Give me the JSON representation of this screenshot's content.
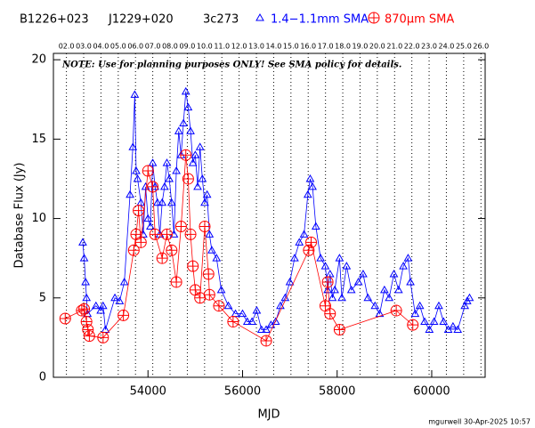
{
  "chart_data": {
    "type": "scatter",
    "labels": [
      "B1226+023",
      "J1229+020",
      "3c273"
    ],
    "annotation": "NOTE: Use for planning purposes ONLY!  See SMA policy for details.",
    "footer": "mgurwell 30-Apr-2025 10:57",
    "xlabel": "MJD",
    "ylabel": "Database Flux (Jy)",
    "xlim": [
      52000,
      61130
    ],
    "ylim": [
      0,
      20.4
    ],
    "xticks": [
      54000,
      56000,
      58000,
      60000
    ],
    "yticks": [
      0,
      5,
      10,
      15,
      20
    ],
    "x2ticks": [
      {
        "value": 52275,
        "label": "02.0"
      },
      {
        "value": 52640,
        "label": "03.0"
      },
      {
        "value": 53005,
        "label": "04.0"
      },
      {
        "value": 53371,
        "label": "05.0"
      },
      {
        "value": 53736,
        "label": "06.0"
      },
      {
        "value": 54101,
        "label": "07.0"
      },
      {
        "value": 54466,
        "label": "08.0"
      },
      {
        "value": 54832,
        "label": "09.0"
      },
      {
        "value": 55197,
        "label": "10.0"
      },
      {
        "value": 55562,
        "label": "11.0"
      },
      {
        "value": 55927,
        "label": "12.0"
      },
      {
        "value": 56293,
        "label": "13.0"
      },
      {
        "value": 56658,
        "label": "14.0"
      },
      {
        "value": 57023,
        "label": "15.0"
      },
      {
        "value": 57388,
        "label": "16.0"
      },
      {
        "value": 57754,
        "label": "17.0"
      },
      {
        "value": 58119,
        "label": "18.0"
      },
      {
        "value": 58484,
        "label": "19.0"
      },
      {
        "value": 58849,
        "label": "20.0"
      },
      {
        "value": 59215,
        "label": "21.0"
      },
      {
        "value": 59580,
        "label": "22.0"
      },
      {
        "value": 59945,
        "label": "23.0"
      },
      {
        "value": 60310,
        "label": "24.0"
      },
      {
        "value": 60676,
        "label": "25.0"
      },
      {
        "value": 61041,
        "label": "26.0"
      }
    ],
    "series": [
      {
        "name": "1.4−1.1mm SMA",
        "color": "#0000ff",
        "marker": "triangle",
        "x": [
          52620,
          52650,
          52680,
          52700,
          52720,
          52900,
          53000,
          53050,
          53100,
          53300,
          53400,
          53500,
          53620,
          53680,
          53720,
          53750,
          53780,
          53850,
          53900,
          53950,
          54000,
          54050,
          54100,
          54150,
          54200,
          54250,
          54300,
          54350,
          54400,
          54450,
          54500,
          54550,
          54600,
          54650,
          54700,
          54750,
          54800,
          54850,
          54900,
          54950,
          55000,
          55050,
          55100,
          55150,
          55200,
          55250,
          55300,
          55350,
          55450,
          55550,
          55700,
          55850,
          56000,
          56100,
          56200,
          56300,
          56400,
          56500,
          56600,
          56700,
          56800,
          56900,
          57000,
          57100,
          57200,
          57300,
          57380,
          57430,
          57480,
          57550,
          57650,
          57750,
          57800,
          57850,
          57900,
          57950,
          58050,
          58100,
          58200,
          58300,
          58450,
          58550,
          58650,
          58800,
          58900,
          59000,
          59100,
          59200,
          59300,
          59400,
          59500,
          59550,
          59650,
          59750,
          59850,
          59950,
          60050,
          60150,
          60250,
          60350,
          60450,
          60550,
          60700,
          60750,
          60800
        ],
        "values": [
          8.5,
          7.5,
          6.0,
          5.0,
          4.0,
          4.5,
          4.2,
          4.5,
          3.0,
          5.0,
          4.8,
          6.0,
          11.5,
          14.5,
          17.8,
          13.0,
          12.5,
          11.0,
          9.0,
          12.0,
          10.0,
          9.5,
          13.5,
          12.0,
          11.0,
          9.0,
          11.0,
          12.0,
          13.5,
          12.5,
          11.0,
          9.0,
          13.0,
          15.5,
          14.0,
          16.0,
          18.0,
          17.0,
          15.5,
          13.5,
          14.0,
          12.0,
          14.5,
          12.5,
          11.0,
          11.5,
          9.0,
          8.0,
          7.5,
          5.5,
          4.5,
          4.0,
          4.0,
          3.5,
          3.5,
          4.2,
          3.0,
          3.0,
          3.3,
          3.5,
          4.5,
          5.0,
          6.0,
          7.5,
          8.5,
          9.0,
          11.5,
          12.5,
          12.0,
          9.5,
          7.5,
          7.0,
          5.5,
          6.5,
          5.0,
          5.5,
          7.5,
          5.0,
          7.0,
          5.5,
          6.0,
          6.5,
          5.0,
          4.5,
          4.0,
          5.5,
          5.0,
          6.5,
          5.5,
          7.0,
          7.5,
          6.0,
          4.0,
          4.5,
          3.5,
          3.0,
          3.5,
          4.5,
          3.5,
          3.0,
          3.2,
          3.0,
          4.5,
          4.8,
          5.0
        ]
      },
      {
        "name": "870μm SMA",
        "color": "#ff0000",
        "marker": "circle-plus",
        "x": [
          52250,
          52600,
          52650,
          52700,
          52730,
          52760,
          53050,
          53480,
          53700,
          53750,
          53800,
          53850,
          54000,
          54100,
          54150,
          54300,
          54400,
          54500,
          54600,
          54700,
          54800,
          54850,
          54900,
          54950,
          55000,
          55100,
          55200,
          55280,
          55300,
          55500,
          55800,
          56500,
          57400,
          57450,
          57750,
          57800,
          57850,
          58050,
          59250,
          59600
        ],
        "values": [
          3.7,
          4.2,
          4.3,
          3.5,
          3.0,
          2.6,
          2.5,
          3.9,
          8.0,
          9.0,
          10.5,
          8.5,
          13.0,
          12.0,
          9.0,
          7.5,
          9.0,
          8.0,
          6.0,
          9.5,
          14.0,
          12.5,
          9.0,
          7.0,
          5.5,
          5.0,
          9.5,
          6.5,
          5.2,
          4.5,
          3.5,
          2.3,
          8.0,
          8.5,
          4.5,
          6.0,
          4.0,
          3.0,
          4.2,
          3.3
        ]
      }
    ]
  }
}
